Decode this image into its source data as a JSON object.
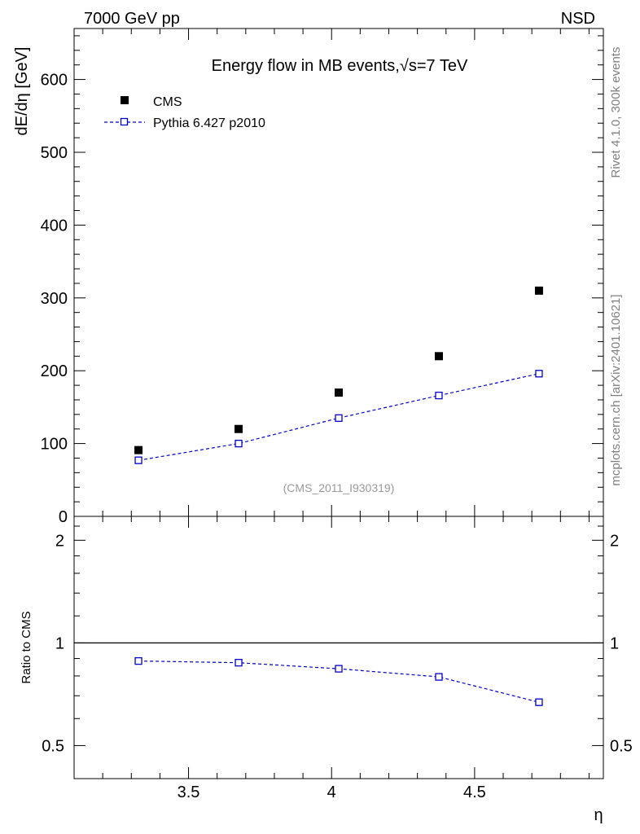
{
  "header": {
    "left_label": "7000 GeV pp",
    "right_label": "NSD"
  },
  "side_labels": {
    "rivet": "Rivet 4.1.0,  300k events",
    "mcplots": "mcplots.cern.ch [arXiv:2401.10621]"
  },
  "chart_data": [
    {
      "type": "scatter",
      "title_prefix": "Energy flow in MB events,",
      "title_sqrt": "√s",
      "title_suffix": "=7 TeV",
      "analysis_id": "(CMS_2011_I930319)",
      "ylabel": "dE/dη [GeV]",
      "xlim": [
        3.1,
        4.95
      ],
      "ylim": [
        0,
        670
      ],
      "yticks": [
        0,
        100,
        200,
        300,
        400,
        500,
        600
      ],
      "ytick_labels": [
        "0",
        "100",
        "200",
        "300",
        "400",
        "500",
        "600"
      ],
      "legend_position": "top-left",
      "series": [
        {
          "name": "CMS",
          "style": "filled-square",
          "color": "#000000",
          "x": [
            3.325,
            3.675,
            4.025,
            4.375,
            4.725
          ],
          "values": [
            91,
            120,
            170,
            220,
            310
          ]
        },
        {
          "name": "Pythia 6.427 p2010",
          "style": "open-square-dashed-line",
          "color": "#0000cc",
          "x": [
            3.325,
            3.675,
            4.025,
            4.375,
            4.725
          ],
          "values": [
            77,
            100,
            135,
            166,
            196
          ]
        }
      ]
    },
    {
      "type": "line",
      "ylabel": "Ratio to CMS",
      "xlabel": "η",
      "xlim": [
        3.1,
        4.95
      ],
      "ylim": [
        0.4,
        2.35
      ],
      "yscale": "log",
      "reference_line": 1,
      "yticks": [
        0.5,
        1,
        2
      ],
      "ytick_labels": [
        "0.5",
        "1",
        "2"
      ],
      "xticks": [
        3.5,
        4,
        4.5
      ],
      "xtick_labels": [
        "3.5",
        "4",
        "4.5"
      ],
      "series": [
        {
          "name": "Pythia 6.427 p2010 / CMS",
          "color": "#0000cc",
          "x": [
            3.325,
            3.675,
            4.025,
            4.375,
            4.725
          ],
          "values": [
            0.885,
            0.875,
            0.84,
            0.795,
            0.67
          ]
        }
      ]
    }
  ]
}
